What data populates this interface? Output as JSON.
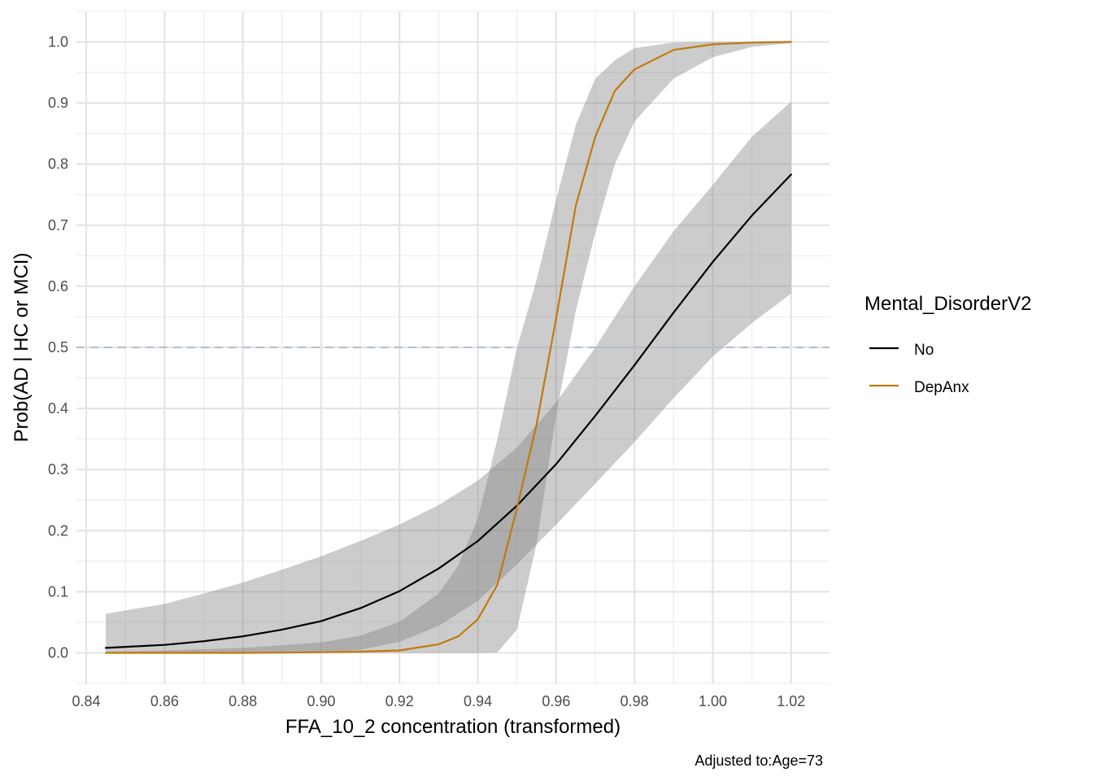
{
  "chart_data": {
    "type": "line",
    "xlabel": "FFA_10_2 concentration (transformed)",
    "ylabel": "Prob(AD | HC or MCI)",
    "caption": "Adjusted to:Age=73",
    "xlim": [
      0.8375,
      1.0298
    ],
    "ylim": [
      -0.05,
      1.05
    ],
    "x_ticks": [
      0.84,
      0.86,
      0.88,
      0.9,
      0.92,
      0.94,
      0.96,
      0.98,
      1.0,
      1.02
    ],
    "x_tick_labels": [
      "0.84",
      "0.86",
      "0.88",
      "0.90",
      "0.92",
      "0.94",
      "0.96",
      "0.98",
      "1.00",
      "1.02"
    ],
    "y_ticks": [
      0.0,
      0.1,
      0.2,
      0.3,
      0.4,
      0.5,
      0.6,
      0.7,
      0.8,
      0.9,
      1.0
    ],
    "y_tick_labels": [
      "0.0",
      "0.1",
      "0.2",
      "0.3",
      "0.4",
      "0.5",
      "0.6",
      "0.7",
      "0.8",
      "0.9",
      "1.0"
    ],
    "grid": true,
    "reference_line": {
      "y": 0.5,
      "style": "dashed",
      "color": "#b0bfd0"
    },
    "legend": {
      "title": "Mental_DisorderV2",
      "position": "right",
      "entries": [
        {
          "label": "No",
          "color": "#000000"
        },
        {
          "label": "DepAnx",
          "color": "#c07a0c"
        }
      ]
    },
    "series": [
      {
        "name": "No",
        "color": "#000000",
        "x": [
          0.845,
          0.86,
          0.87,
          0.88,
          0.89,
          0.9,
          0.91,
          0.92,
          0.93,
          0.94,
          0.95,
          0.96,
          0.97,
          0.98,
          0.99,
          1.0,
          1.01,
          1.02
        ],
        "y": [
          0.008,
          0.013,
          0.019,
          0.027,
          0.038,
          0.052,
          0.073,
          0.101,
          0.138,
          0.183,
          0.241,
          0.309,
          0.388,
          0.471,
          0.557,
          0.64,
          0.716,
          0.783
        ],
        "lower": [
          0.0,
          0.0,
          0.0,
          0.0,
          0.0,
          0.0,
          0.005,
          0.018,
          0.044,
          0.085,
          0.145,
          0.21,
          0.277,
          0.345,
          0.417,
          0.485,
          0.54,
          0.588
        ],
        "upper": [
          0.064,
          0.08,
          0.097,
          0.115,
          0.136,
          0.158,
          0.183,
          0.21,
          0.242,
          0.282,
          0.336,
          0.41,
          0.5,
          0.6,
          0.69,
          0.766,
          0.845,
          0.902
        ]
      },
      {
        "name": "DepAnx",
        "color": "#c07a0c",
        "x": [
          0.845,
          0.86,
          0.88,
          0.9,
          0.91,
          0.92,
          0.93,
          0.935,
          0.94,
          0.945,
          0.95,
          0.955,
          0.96,
          0.965,
          0.97,
          0.975,
          0.98,
          0.99,
          1.0,
          1.01,
          1.02
        ],
        "y": [
          0.0,
          0.0,
          0.0,
          0.001,
          0.002,
          0.004,
          0.014,
          0.027,
          0.055,
          0.112,
          0.237,
          0.374,
          0.548,
          0.732,
          0.845,
          0.92,
          0.955,
          0.987,
          0.996,
          0.999,
          1.0
        ],
        "lower": [
          0.0,
          0.0,
          0.0,
          0.0,
          0.0,
          0.0,
          0.0,
          0.0,
          0.0,
          0.001,
          0.038,
          0.178,
          0.39,
          0.56,
          0.688,
          0.8,
          0.87,
          0.94,
          0.975,
          0.992,
          0.998
        ],
        "upper": [
          0.002,
          0.004,
          0.008,
          0.017,
          0.028,
          0.051,
          0.097,
          0.143,
          0.22,
          0.35,
          0.5,
          0.61,
          0.742,
          0.864,
          0.94,
          0.97,
          0.99,
          0.999,
          1.0,
          1.0,
          1.0
        ]
      }
    ]
  }
}
